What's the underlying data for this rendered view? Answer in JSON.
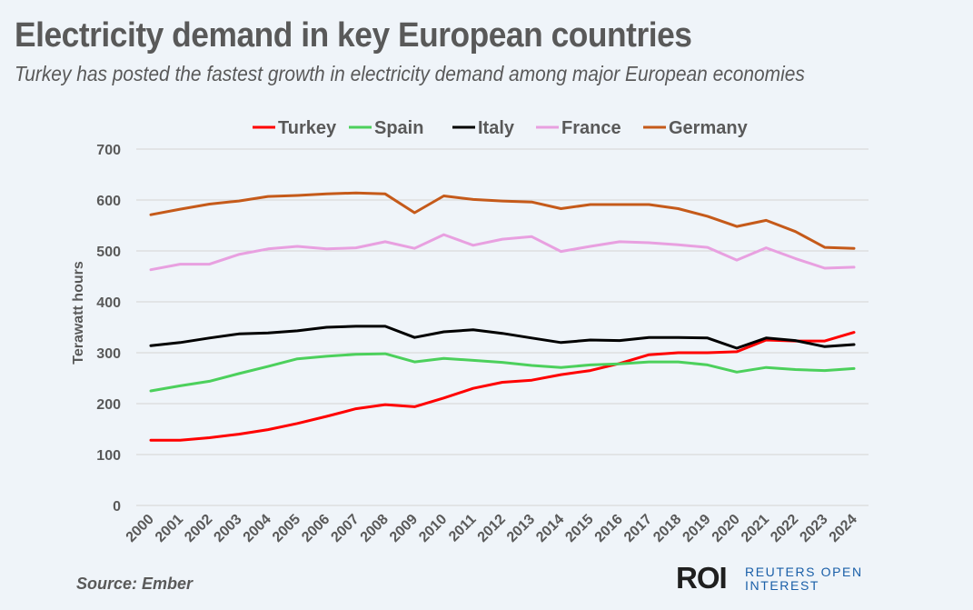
{
  "header": {
    "title": "Electricity demand in key European countries",
    "subtitle": "Turkey has posted the fastest growth in electricity demand among major European economies"
  },
  "footer": {
    "source": "Source: Ember",
    "logo_mark": "ROI",
    "logo_line1": "REUTERS OPEN",
    "logo_line2": "INTEREST",
    "logo_color": "#1a5fa8"
  },
  "chart_data": {
    "type": "line",
    "title": "Electricity demand in key European countries",
    "subtitle": "Turkey has posted the fastest growth in electricity demand among major European economies",
    "xlabel": "",
    "ylabel": "Terawatt hours",
    "ylim": [
      0,
      700
    ],
    "yticks": [
      0,
      100,
      200,
      300,
      400,
      500,
      600,
      700
    ],
    "grid": true,
    "legend_position": "top",
    "x": [
      "2000",
      "2001",
      "2002",
      "2003",
      "2004",
      "2005",
      "2006",
      "2007",
      "2008",
      "2009",
      "2010",
      "2011",
      "2012",
      "2013",
      "2014",
      "2015",
      "2016",
      "2017",
      "2018",
      "2019",
      "2020",
      "2021",
      "2022",
      "2023",
      "2024"
    ],
    "series": [
      {
        "name": "Turkey",
        "color": "#ff0000",
        "values": [
          128,
          128,
          133,
          140,
          149,
          161,
          175,
          190,
          198,
          194,
          211,
          230,
          242,
          246,
          257,
          265,
          279,
          296,
          300,
          300,
          302,
          325,
          323,
          323,
          340
        ]
      },
      {
        "name": "Spain",
        "color": "#4cd05c",
        "values": [
          225,
          235,
          244,
          259,
          273,
          288,
          293,
          297,
          298,
          282,
          289,
          285,
          281,
          275,
          271,
          276,
          278,
          282,
          282,
          276,
          262,
          271,
          267,
          265,
          269
        ]
      },
      {
        "name": "Italy",
        "color": "#000000",
        "values": [
          314,
          320,
          329,
          337,
          339,
          343,
          350,
          352,
          352,
          330,
          341,
          345,
          338,
          329,
          320,
          325,
          324,
          330,
          330,
          329,
          309,
          329,
          324,
          312,
          316
        ]
      },
      {
        "name": "France",
        "color": "#e8a0e0",
        "values": [
          463,
          474,
          474,
          493,
          504,
          509,
          504,
          506,
          518,
          505,
          532,
          511,
          523,
          528,
          499,
          509,
          518,
          516,
          512,
          507,
          482,
          506,
          485,
          466,
          468
        ]
      },
      {
        "name": "Germany",
        "color": "#c55a1a",
        "values": [
          571,
          582,
          592,
          598,
          607,
          609,
          612,
          614,
          612,
          575,
          608,
          601,
          598,
          596,
          583,
          591,
          591,
          591,
          583,
          568,
          548,
          560,
          538,
          507,
          505
        ]
      }
    ]
  }
}
